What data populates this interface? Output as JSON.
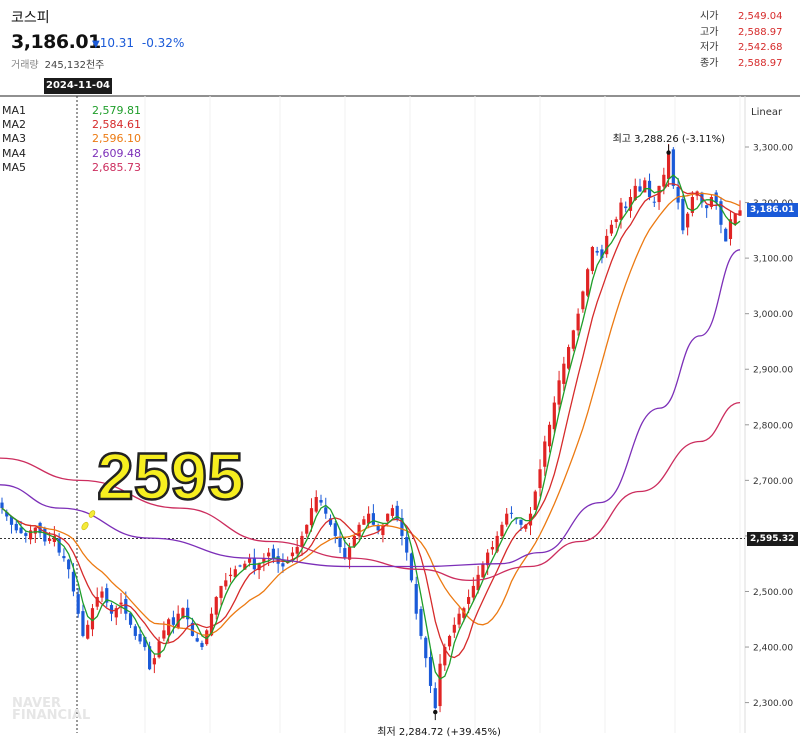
{
  "header": {
    "name": "코스피",
    "price": "3,186.01",
    "change_arrow": "▼",
    "change": "10.31",
    "change_pct": "-0.32%",
    "volume_label": "거래량",
    "volume": "245,132천주"
  },
  "ohlc": [
    {
      "label": "시가",
      "value": "2,549.04"
    },
    {
      "label": "고가",
      "value": "2,588.97"
    },
    {
      "label": "저가",
      "value": "2,542.68"
    },
    {
      "label": "종가",
      "value": "2,588.97"
    }
  ],
  "crosshair_date": "2024-11-04",
  "moving_averages": [
    {
      "name": "MA1",
      "value": "2,579.81",
      "color": "#1f9e2a"
    },
    {
      "name": "MA2",
      "value": "2,584.61",
      "color": "#d62b2b"
    },
    {
      "name": "MA3",
      "value": "2,596.10",
      "color": "#ec7a12"
    },
    {
      "name": "MA4",
      "value": "2,609.48",
      "color": "#7c2fb8"
    },
    {
      "name": "MA5",
      "value": "2,685.73",
      "color": "#cc2d5e"
    }
  ],
  "overlay_label": "2595",
  "watermark": [
    "NAVER",
    "FINANCIAL"
  ],
  "chart_data": {
    "type": "line",
    "scale": "Linear",
    "y_ticks": [
      "3,300.00",
      "3,200.00",
      "3,100.00",
      "3,000.00",
      "2,900.00",
      "2,800.00",
      "2,700.00",
      "2,600.00",
      "2,500.00",
      "2,400.00",
      "2,300.00"
    ],
    "y_tick_values": [
      3300,
      3200,
      3100,
      3000,
      2900,
      2800,
      2700,
      2600,
      2500,
      2400,
      2300
    ],
    "ylim": [
      2278,
      3358
    ],
    "current_price_tag": "3,186.01",
    "current_price": 3186.01,
    "crosshair_price_tag": "2,595.32",
    "crosshair_price": 2595.32,
    "max_annotation": "최고 3,288.26 (-3.11%)",
    "max_value": 3288.26,
    "min_annotation": "최저 2,284.72 (+39.45%)",
    "min_value": 2284.72,
    "close_series": [
      2650,
      2635,
      2620,
      2610,
      2605,
      2600,
      2610,
      2615,
      2605,
      2590,
      2595,
      2600,
      2570,
      2560,
      2540,
      2500,
      2460,
      2420,
      2440,
      2470,
      2490,
      2500,
      2480,
      2460,
      2470,
      2480,
      2460,
      2440,
      2420,
      2410,
      2400,
      2360,
      2380,
      2410,
      2430,
      2450,
      2440,
      2460,
      2470,
      2450,
      2420,
      2410,
      2400,
      2430,
      2460,
      2490,
      2510,
      2520,
      2530,
      2540,
      2545,
      2550,
      2560,
      2540,
      2550,
      2560,
      2570,
      2560,
      2550,
      2545,
      2555,
      2570,
      2580,
      2600,
      2620,
      2650,
      2670,
      2660,
      2640,
      2620,
      2600,
      2580,
      2560,
      2580,
      2600,
      2620,
      2630,
      2640,
      2620,
      2610,
      2620,
      2640,
      2650,
      2630,
      2600,
      2570,
      2520,
      2460,
      2420,
      2380,
      2330,
      2290,
      2370,
      2400,
      2420,
      2440,
      2460,
      2470,
      2490,
      2510,
      2530,
      2550,
      2570,
      2580,
      2600,
      2620,
      2640,
      2640,
      2630,
      2620,
      2620,
      2640,
      2680,
      2720,
      2770,
      2800,
      2840,
      2880,
      2910,
      2940,
      2970,
      3000,
      3040,
      3080,
      3120,
      3110,
      3100,
      3140,
      3160,
      3170,
      3200,
      3190,
      3210,
      3230,
      3220,
      3240,
      3210,
      3200,
      3230,
      3250,
      3288,
      3230,
      3200,
      3150,
      3180,
      3210,
      3220,
      3200,
      3190,
      3210,
      3200,
      3160,
      3130,
      3170,
      3180,
      3186
    ]
  }
}
